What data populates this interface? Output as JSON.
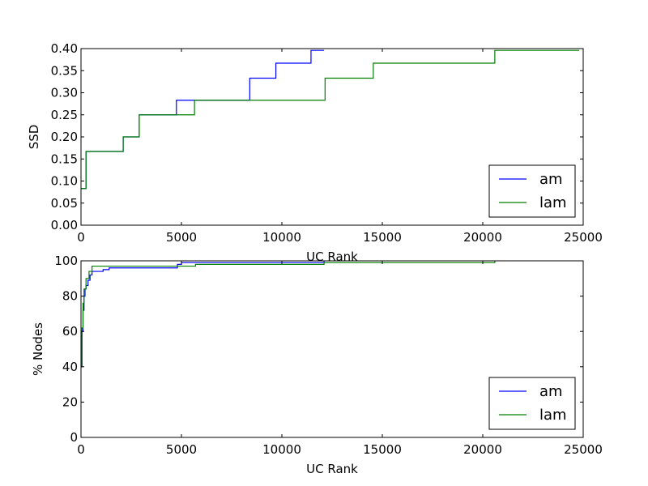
{
  "chart_data": [
    {
      "type": "line",
      "step": true,
      "title": "",
      "xlabel": "UC Rank",
      "ylabel": "SSD",
      "xlim": [
        0,
        25000
      ],
      "ylim": [
        0.0,
        0.4
      ],
      "xticks": [
        "0",
        "5000",
        "10000",
        "15000",
        "20000",
        "25000"
      ],
      "yticks": [
        "0.00",
        "0.05",
        "0.10",
        "0.15",
        "0.20",
        "0.25",
        "0.30",
        "0.35",
        "0.40"
      ],
      "grid": false,
      "legend_position": "bottom-right",
      "series": [
        {
          "name": "am",
          "color": "#0000ff",
          "points": [
            [
              0,
              0.083
            ],
            [
              250,
              0.083
            ],
            [
              250,
              0.167
            ],
            [
              2100,
              0.167
            ],
            [
              2100,
              0.2
            ],
            [
              2900,
              0.2
            ],
            [
              2900,
              0.25
            ],
            [
              4750,
              0.25
            ],
            [
              4750,
              0.283
            ],
            [
              8400,
              0.283
            ],
            [
              8400,
              0.333
            ],
            [
              9700,
              0.333
            ],
            [
              9700,
              0.367
            ],
            [
              11450,
              0.367
            ],
            [
              11450,
              0.396
            ],
            [
              12100,
              0.396
            ]
          ]
        },
        {
          "name": "lam",
          "color": "#008000",
          "points": [
            [
              0,
              0.083
            ],
            [
              250,
              0.083
            ],
            [
              250,
              0.167
            ],
            [
              2100,
              0.167
            ],
            [
              2100,
              0.2
            ],
            [
              2900,
              0.2
            ],
            [
              2900,
              0.25
            ],
            [
              5650,
              0.25
            ],
            [
              5650,
              0.283
            ],
            [
              12150,
              0.283
            ],
            [
              12150,
              0.333
            ],
            [
              14550,
              0.333
            ],
            [
              14550,
              0.367
            ],
            [
              20600,
              0.367
            ],
            [
              20600,
              0.396
            ],
            [
              24800,
              0.396
            ]
          ]
        }
      ]
    },
    {
      "type": "line",
      "step": true,
      "title": "",
      "xlabel": "UC Rank",
      "ylabel": "% Nodes",
      "xlim": [
        0,
        25000
      ],
      "ylim": [
        0,
        100
      ],
      "xticks": [
        "0",
        "5000",
        "10000",
        "15000",
        "20000",
        "25000"
      ],
      "yticks": [
        "0",
        "20",
        "40",
        "60",
        "80",
        "100"
      ],
      "grid": false,
      "legend_position": "bottom-right",
      "series": [
        {
          "name": "am",
          "color": "#0000ff",
          "points": [
            [
              0,
              40
            ],
            [
              50,
              60
            ],
            [
              100,
              72
            ],
            [
              150,
              80
            ],
            [
              200,
              84
            ],
            [
              250,
              86
            ],
            [
              350,
              89
            ],
            [
              450,
              92
            ],
            [
              550,
              94
            ],
            [
              1100,
              95
            ],
            [
              1400,
              96
            ],
            [
              4800,
              98
            ],
            [
              5000,
              99
            ],
            [
              12100,
              100
            ]
          ]
        },
        {
          "name": "lam",
          "color": "#008000",
          "points": [
            [
              0,
              40
            ],
            [
              50,
              62
            ],
            [
              100,
              76
            ],
            [
              150,
              84
            ],
            [
              250,
              90
            ],
            [
              400,
              94
            ],
            [
              550,
              97
            ],
            [
              5700,
              98
            ],
            [
              12100,
              99
            ],
            [
              20600,
              100
            ]
          ]
        }
      ]
    }
  ]
}
